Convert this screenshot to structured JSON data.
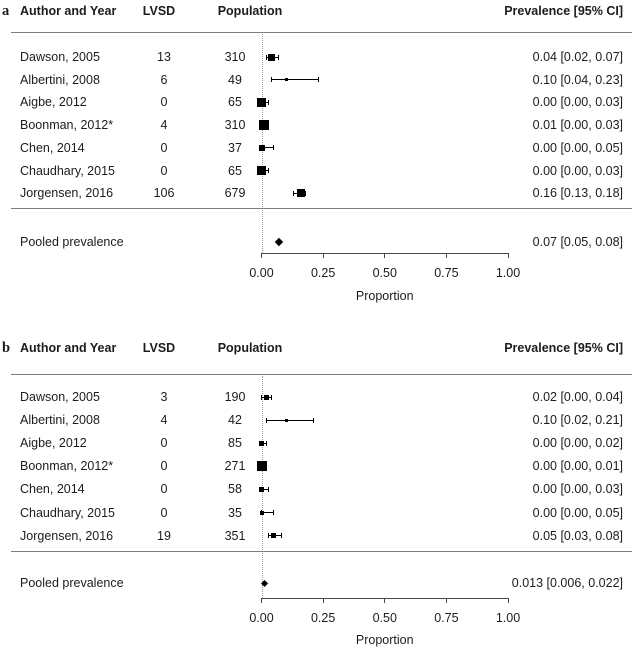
{
  "figure": {
    "colors": {
      "background": "#ffffff",
      "text": "#1c1c1c",
      "rule": "#7d7d7d",
      "marker": "#000000",
      "axis": "#4a4a4a",
      "reference_line": "#a0a0a0"
    }
  },
  "chart_data": [
    {
      "type": "forest",
      "panel_label": "a",
      "columns": {
        "author": "Author and Year",
        "lvsd": "LVSD",
        "population": "Population",
        "prevalence": "Prevalence [95% CI]"
      },
      "xlabel": "Proportion",
      "xlim": [
        0,
        1
      ],
      "refline": 0,
      "legend": "none",
      "grid": false,
      "xticks": [
        {
          "value": 0,
          "label": "0.00"
        },
        {
          "value": 0.25,
          "label": "0.25"
        },
        {
          "value": 0.5,
          "label": "0.50"
        },
        {
          "value": 0.75,
          "label": "0.75"
        },
        {
          "value": 1,
          "label": "1.00"
        }
      ],
      "studies": [
        {
          "author": "Dawson, 2005",
          "lvsd": "13",
          "population": "310",
          "est": 0.04,
          "lo": 0.02,
          "hi": 0.07,
          "ci_text": "0.04 [0.02, 0.07]",
          "marker_size_px": 7
        },
        {
          "author": "Albertini, 2008",
          "lvsd": "6",
          "population": "49",
          "est": 0.1,
          "lo": 0.04,
          "hi": 0.23,
          "ci_text": "0.10 [0.04, 0.23]",
          "marker_size_px": 3
        },
        {
          "author": "Aigbe, 2012",
          "lvsd": "0",
          "population": "65",
          "est": 0.0,
          "lo": 0.0,
          "hi": 0.03,
          "ci_text": "0.00 [0.00, 0.03]",
          "marker_size_px": 9
        },
        {
          "author": "Boonman, 2012*",
          "lvsd": "4",
          "population": "310",
          "est": 0.01,
          "lo": 0.0,
          "hi": 0.03,
          "ci_text": "0.01 [0.00, 0.03]",
          "marker_size_px": 10
        },
        {
          "author": "Chen, 2014",
          "lvsd": "0",
          "population": "37",
          "est": 0.0,
          "lo": 0.0,
          "hi": 0.05,
          "ci_text": "0.00 [0.00, 0.05]",
          "marker_size_px": 6
        },
        {
          "author": "Chaudhary, 2015",
          "lvsd": "0",
          "population": "65",
          "est": 0.0,
          "lo": 0.0,
          "hi": 0.03,
          "ci_text": "0.00 [0.00, 0.03]",
          "marker_size_px": 9
        },
        {
          "author": "Jorgensen, 2016",
          "lvsd": "106",
          "population": "679",
          "est": 0.16,
          "lo": 0.13,
          "hi": 0.18,
          "ci_text": "0.16 [0.13, 0.18]",
          "marker_size_px": 8
        }
      ],
      "pooled": {
        "label": "Pooled prevalence",
        "est": 0.07,
        "lo": 0.05,
        "hi": 0.08,
        "ci_text": "0.07 [0.05, 0.08]"
      }
    },
    {
      "type": "forest",
      "panel_label": "b",
      "columns": {
        "author": "Author and Year",
        "lvsd": "LVSD",
        "population": "Population",
        "prevalence": "Prevalence [95% CI]"
      },
      "xlabel": "Proportion",
      "xlim": [
        0,
        1
      ],
      "refline": 0,
      "legend": "none",
      "grid": false,
      "xticks": [
        {
          "value": 0,
          "label": "0.00"
        },
        {
          "value": 0.25,
          "label": "0.25"
        },
        {
          "value": 0.5,
          "label": "0.50"
        },
        {
          "value": 0.75,
          "label": "0.75"
        },
        {
          "value": 1,
          "label": "1.00"
        }
      ],
      "studies": [
        {
          "author": "Dawson, 2005",
          "lvsd": "3",
          "population": "190",
          "est": 0.02,
          "lo": 0.0,
          "hi": 0.04,
          "ci_text": "0.02 [0.00, 0.04]",
          "marker_size_px": 5
        },
        {
          "author": "Albertini, 2008",
          "lvsd": "4",
          "population": "42",
          "est": 0.1,
          "lo": 0.02,
          "hi": 0.21,
          "ci_text": "0.10 [0.02, 0.21]",
          "marker_size_px": 3
        },
        {
          "author": "Aigbe, 2012",
          "lvsd": "0",
          "population": "85",
          "est": 0.0,
          "lo": 0.0,
          "hi": 0.02,
          "ci_text": "0.00 [0.00, 0.02]",
          "marker_size_px": 5
        },
        {
          "author": "Boonman, 2012*",
          "lvsd": "0",
          "population": "271",
          "est": 0.0,
          "lo": 0.0,
          "hi": 0.01,
          "ci_text": "0.00 [0.00, 0.01]",
          "marker_size_px": 10
        },
        {
          "author": "Chen, 2014",
          "lvsd": "0",
          "population": "58",
          "est": 0.0,
          "lo": 0.0,
          "hi": 0.03,
          "ci_text": "0.00 [0.00, 0.03]",
          "marker_size_px": 4.5
        },
        {
          "author": "Chaudhary, 2015",
          "lvsd": "0",
          "population": "35",
          "est": 0.0,
          "lo": 0.0,
          "hi": 0.05,
          "ci_text": "0.00 [0.00, 0.05]",
          "marker_size_px": 4
        },
        {
          "author": "Jorgensen, 2016",
          "lvsd": "19",
          "population": "351",
          "est": 0.05,
          "lo": 0.03,
          "hi": 0.08,
          "ci_text": "0.05 [0.03, 0.08]",
          "marker_size_px": 5
        }
      ],
      "pooled": {
        "label": "Pooled prevalence",
        "est": 0.013,
        "lo": 0.006,
        "hi": 0.022,
        "ci_text": "0.013 [0.006, 0.022]"
      }
    }
  ]
}
